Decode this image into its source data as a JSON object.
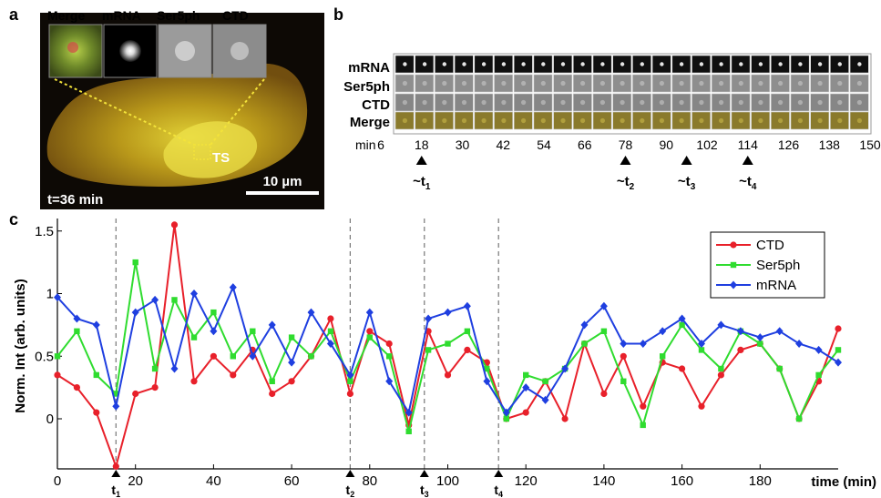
{
  "panel_a": {
    "letter": "a",
    "labels": [
      {
        "text": "Merge",
        "color": "#000000"
      },
      {
        "text": "mRNA",
        "color": "#1f3fe0"
      },
      {
        "text": "Ser5ph",
        "color": "#2fdc2f"
      },
      {
        "text": "CTD",
        "color": "#e8202a"
      }
    ],
    "ts_label": "TS",
    "scalebar_label": "10 µm",
    "time_label": "t=36 min"
  },
  "panel_b": {
    "letter": "b",
    "rows": [
      {
        "text": "mRNA",
        "color": "#1f3fe0"
      },
      {
        "text": "Ser5ph",
        "color": "#2fdc2f"
      },
      {
        "text": "CTD",
        "color": "#e8202a"
      },
      {
        "text": "Merge",
        "color": "#000000"
      }
    ],
    "min_label": "min",
    "times": [
      "6",
      "18",
      "30",
      "42",
      "54",
      "66",
      "78",
      "90",
      "102",
      "114",
      "126",
      "138",
      "150"
    ],
    "markers": [
      {
        "base": "~t",
        "sub": "1",
        "time": 18
      },
      {
        "base": "~t",
        "sub": "2",
        "time": 78
      },
      {
        "base": "~t",
        "sub": "3",
        "time": 96
      },
      {
        "base": "~t",
        "sub": "4",
        "time": 114
      }
    ]
  },
  "panel_c": {
    "letter": "c"
  },
  "chart_data": {
    "type": "line",
    "xlabel": "time (min)",
    "ylabel": "Norm. Int (arb. units)",
    "xlim": [
      0,
      200
    ],
    "ylim": [
      -0.4,
      1.6
    ],
    "xticks": [
      "0",
      "20",
      "40",
      "60",
      "80",
      "100",
      "120",
      "140",
      "160",
      "180"
    ],
    "yticks": [
      "0",
      "0.5",
      "1",
      "1.5"
    ],
    "legend_position": "top-right",
    "events": [
      {
        "base": "t",
        "sub": "1",
        "x": 15
      },
      {
        "base": "t",
        "sub": "2",
        "x": 75
      },
      {
        "base": "t",
        "sub": "3",
        "x": 94
      },
      {
        "base": "t",
        "sub": "4",
        "x": 113
      }
    ],
    "x": [
      0,
      5,
      10,
      15,
      20,
      25,
      30,
      35,
      40,
      45,
      50,
      55,
      60,
      65,
      70,
      75,
      80,
      85,
      90,
      95,
      100,
      105,
      110,
      115,
      120,
      125,
      130,
      135,
      140,
      145,
      150,
      155,
      160,
      165,
      170,
      175,
      180,
      185,
      190,
      195,
      200
    ],
    "series": [
      {
        "name": "CTD",
        "color": "#e8202a",
        "marker": "circle",
        "values": [
          0.35,
          0.25,
          0.05,
          -0.38,
          0.2,
          0.25,
          1.55,
          0.3,
          0.5,
          0.35,
          0.55,
          0.2,
          0.3,
          0.5,
          0.8,
          0.2,
          0.7,
          0.6,
          -0.05,
          0.7,
          0.35,
          0.55,
          0.45,
          0.0,
          0.05,
          0.3,
          0.0,
          0.6,
          0.2,
          0.5,
          0.1,
          0.45,
          0.4,
          0.1,
          0.35,
          0.55,
          0.6,
          0.4,
          0.0,
          0.3,
          0.72
        ]
      },
      {
        "name": "Ser5ph",
        "color": "#2fdc2f",
        "marker": "square",
        "values": [
          0.5,
          0.7,
          0.35,
          0.2,
          1.25,
          0.4,
          0.95,
          0.65,
          0.85,
          0.5,
          0.7,
          0.3,
          0.65,
          0.5,
          0.7,
          0.3,
          0.65,
          0.5,
          -0.1,
          0.55,
          0.6,
          0.7,
          0.4,
          0.0,
          0.35,
          0.3,
          0.4,
          0.6,
          0.7,
          0.3,
          -0.05,
          0.5,
          0.75,
          0.55,
          0.4,
          0.7,
          0.6,
          0.4,
          0.0,
          0.35,
          0.55
        ]
      },
      {
        "name": "mRNA",
        "color": "#1f3fe0",
        "marker": "diamond",
        "values": [
          0.97,
          0.8,
          0.75,
          0.1,
          0.85,
          0.95,
          0.4,
          1.0,
          0.7,
          1.05,
          0.5,
          0.75,
          0.45,
          0.85,
          0.6,
          0.35,
          0.85,
          0.3,
          0.05,
          0.8,
          0.85,
          0.9,
          0.3,
          0.05,
          0.25,
          0.15,
          0.4,
          0.75,
          0.9,
          0.6,
          0.6,
          0.7,
          0.8,
          0.6,
          0.75,
          0.7,
          0.65,
          0.7,
          0.6,
          0.55,
          0.45
        ]
      }
    ]
  }
}
